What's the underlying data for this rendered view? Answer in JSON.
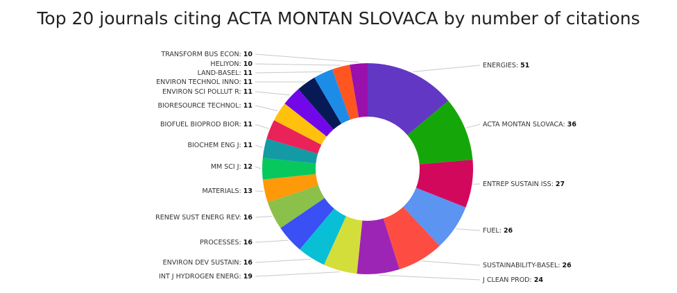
{
  "chart_data": {
    "type": "pie",
    "variant": "donut",
    "title": "Top 20 journals citing ACTA MONTAN SLOVACA by number of citations",
    "slices": [
      {
        "label": "ENERGIES",
        "value": 51,
        "color": "#6237c4"
      },
      {
        "label": "ACTA MONTAN SLOVACA",
        "value": 36,
        "color": "#15a70a"
      },
      {
        "label": "ENTREP SUSTAIN ISS",
        "value": 27,
        "color": "#d2085c"
      },
      {
        "label": "FUEL",
        "value": 26,
        "color": "#5b94f1"
      },
      {
        "label": "SUSTAINABILITY-BASEL",
        "value": 26,
        "color": "#fd4d43"
      },
      {
        "label": "J CLEAN PROD",
        "value": 24,
        "color": "#9c25b5"
      },
      {
        "label": "INT J HYDROGEN ENERG",
        "value": 19,
        "color": "#d3de3a"
      },
      {
        "label": "ENVIRON DEV SUSTAIN",
        "value": 16,
        "color": "#08bfd6"
      },
      {
        "label": "PROCESSES",
        "value": 16,
        "color": "#3a4ff4"
      },
      {
        "label": "RENEW SUST ENERG REV",
        "value": 16,
        "color": "#8bc04a"
      },
      {
        "label": "MATERIALS",
        "value": 13,
        "color": "#fe9a09"
      },
      {
        "label": "MM SCI J",
        "value": 12,
        "color": "#06c85c"
      },
      {
        "label": "BIOCHEM ENG J",
        "value": 11,
        "color": "#139aa4"
      },
      {
        "label": "BIOFUEL BIOPROD BIOR",
        "value": 11,
        "color": "#e9225a"
      },
      {
        "label": "BIORESOURCE TECHNOL",
        "value": 11,
        "color": "#ffc10b"
      },
      {
        "label": "ENVIRON SCI POLLUT R",
        "value": 11,
        "color": "#7208ea"
      },
      {
        "label": "ENVIRON TECHNOL INNO",
        "value": 11,
        "color": "#081a55"
      },
      {
        "label": "LAND-BASEL",
        "value": 11,
        "color": "#1d8ce7"
      },
      {
        "label": "HELIYON",
        "value": 10,
        "color": "#ff5621"
      },
      {
        "label": "TRANSFORM BUS ECON",
        "value": 10,
        "color": "#9a10ad"
      }
    ],
    "legend": "none"
  }
}
